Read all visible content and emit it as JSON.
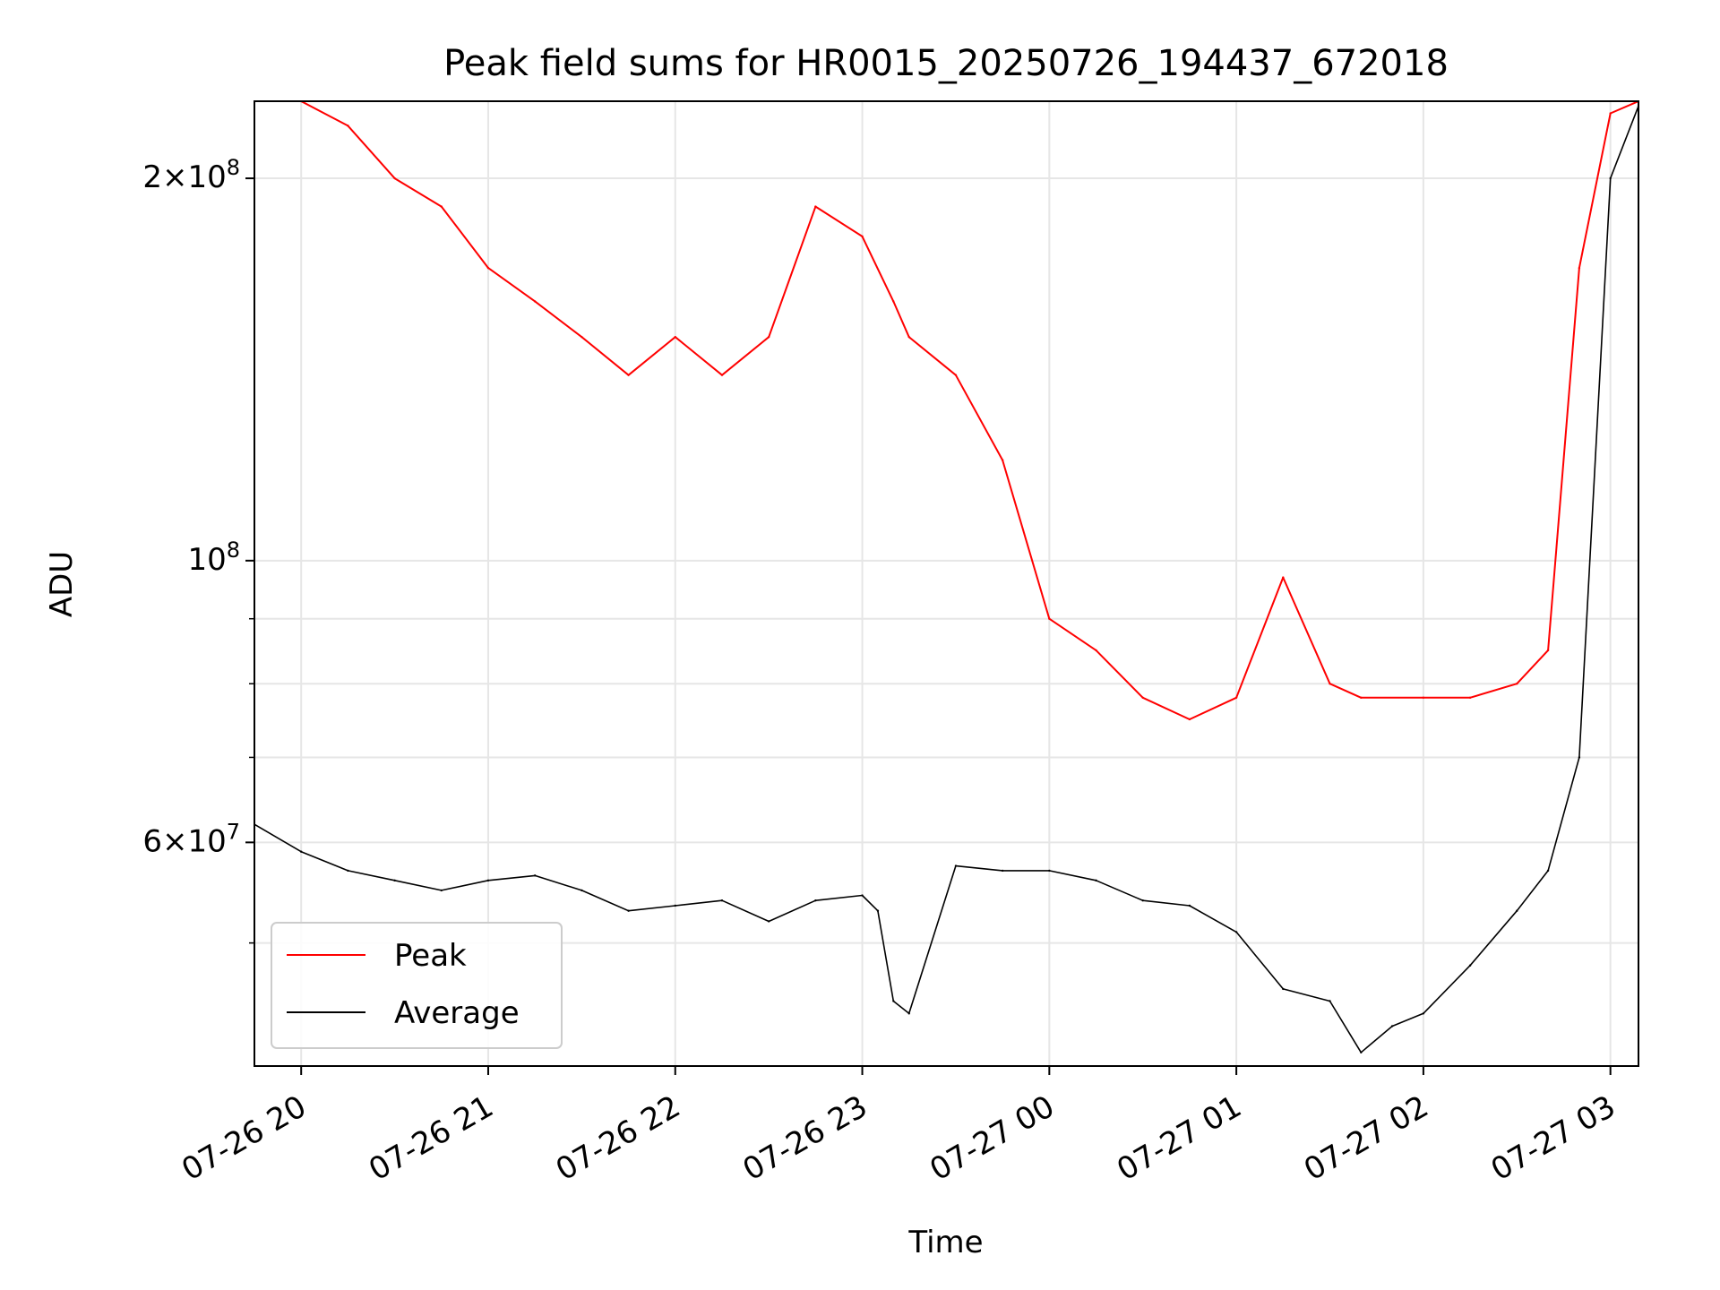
{
  "chart_data": {
    "type": "line",
    "title": "Peak field sums for HR0015_20250726_194437_672018",
    "xlabel": "Time",
    "ylabel": "ADU",
    "yscale": "log",
    "ylim": [
      40000000,
      230000000
    ],
    "xlim": [
      "2025-07-26 19:45",
      "2025-07-27 03:09"
    ],
    "grid": true,
    "legend_position": "lower left",
    "x_ticks": [
      {
        "value": "2025-07-26 20:00",
        "label": "07-26 20"
      },
      {
        "value": "2025-07-26 21:00",
        "label": "07-26 21"
      },
      {
        "value": "2025-07-26 22:00",
        "label": "07-26 22"
      },
      {
        "value": "2025-07-26 23:00",
        "label": "07-26 23"
      },
      {
        "value": "2025-07-27 00:00",
        "label": "07-27 00"
      },
      {
        "value": "2025-07-27 01:00",
        "label": "07-27 01"
      },
      {
        "value": "2025-07-27 02:00",
        "label": "07-27 02"
      },
      {
        "value": "2025-07-27 03:00",
        "label": "07-27 03"
      }
    ],
    "y_ticks": [
      {
        "value": 60000000,
        "mantissa": "6",
        "exponent": "7"
      },
      {
        "value": 100000000,
        "mantissa": "",
        "exponent": "8"
      },
      {
        "value": 200000000,
        "mantissa": "2",
        "exponent": "8"
      }
    ],
    "y_minor_ticks": [
      50000000,
      70000000,
      80000000,
      90000000
    ],
    "series": [
      {
        "name": "Peak",
        "color": "#ff0000",
        "x": [
          "2025-07-26 19:45",
          "2025-07-26 20:00",
          "2025-07-26 20:15",
          "2025-07-26 20:30",
          "2025-07-26 20:45",
          "2025-07-26 21:00",
          "2025-07-26 21:15",
          "2025-07-26 21:30",
          "2025-07-26 21:45",
          "2025-07-26 22:00",
          "2025-07-26 22:15",
          "2025-07-26 22:30",
          "2025-07-26 22:45",
          "2025-07-26 23:00",
          "2025-07-26 23:10",
          "2025-07-26 23:15",
          "2025-07-26 23:30",
          "2025-07-26 23:45",
          "2025-07-27 00:00",
          "2025-07-27 00:15",
          "2025-07-27 00:30",
          "2025-07-27 00:45",
          "2025-07-27 01:00",
          "2025-07-27 01:15",
          "2025-07-27 01:30",
          "2025-07-27 01:40",
          "2025-07-27 02:00",
          "2025-07-27 02:15",
          "2025-07-27 02:30",
          "2025-07-27 02:40",
          "2025-07-27 02:50",
          "2025-07-27 03:00",
          "2025-07-27 03:09"
        ],
        "y": [
          230000000,
          230000000,
          220000000,
          200000000,
          190000000,
          170000000,
          160000000,
          150000000,
          140000000,
          150000000,
          140000000,
          150000000,
          190000000,
          180000000,
          160000000,
          150000000,
          140000000,
          120000000,
          90000000,
          85000000,
          78000000,
          75000000,
          78000000,
          97000000,
          80000000,
          78000000,
          78000000,
          78000000,
          80000000,
          85000000,
          170000000,
          225000000,
          230000000
        ]
      },
      {
        "name": "Average",
        "color": "#000000",
        "x": [
          "2025-07-26 19:45",
          "2025-07-26 20:00",
          "2025-07-26 20:15",
          "2025-07-26 20:30",
          "2025-07-26 20:45",
          "2025-07-26 21:00",
          "2025-07-26 21:15",
          "2025-07-26 21:30",
          "2025-07-26 21:45",
          "2025-07-26 22:00",
          "2025-07-26 22:15",
          "2025-07-26 22:30",
          "2025-07-26 22:45",
          "2025-07-26 23:00",
          "2025-07-26 23:05",
          "2025-07-26 23:10",
          "2025-07-26 23:15",
          "2025-07-26 23:30",
          "2025-07-26 23:45",
          "2025-07-27 00:00",
          "2025-07-27 00:15",
          "2025-07-27 00:30",
          "2025-07-27 00:45",
          "2025-07-27 01:00",
          "2025-07-27 01:15",
          "2025-07-27 01:30",
          "2025-07-27 01:40",
          "2025-07-27 01:50",
          "2025-07-27 02:00",
          "2025-07-27 02:15",
          "2025-07-27 02:30",
          "2025-07-27 02:40",
          "2025-07-27 02:50",
          "2025-07-27 03:00",
          "2025-07-27 03:09"
        ],
        "y": [
          62000000,
          59000000,
          57000000,
          56000000,
          55000000,
          56000000,
          56500000,
          55000000,
          53000000,
          53500000,
          54000000,
          52000000,
          54000000,
          54500000,
          53000000,
          45000000,
          44000000,
          57500000,
          57000000,
          57000000,
          56000000,
          54000000,
          53500000,
          51000000,
          46000000,
          45000000,
          41000000,
          43000000,
          44000000,
          48000000,
          53000000,
          57000000,
          70000000,
          200000000,
          228000000
        ]
      }
    ]
  }
}
